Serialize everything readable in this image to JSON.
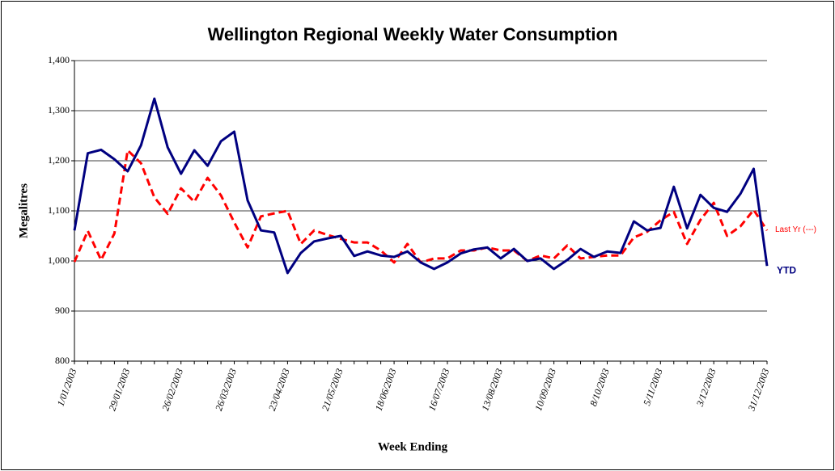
{
  "chart_data": {
    "type": "line",
    "title": "Wellington Regional Weekly Water Consumption",
    "x_label": "Week Ending",
    "y_label": "Megalitres",
    "categories": [
      "1/01/2003",
      null,
      null,
      null,
      "29/01/2003",
      null,
      null,
      null,
      "26/02/2003",
      null,
      null,
      null,
      "26/03/2003",
      null,
      null,
      null,
      "23/04/2003",
      null,
      null,
      null,
      "21/05/2003",
      null,
      null,
      null,
      "18/06/2003",
      null,
      null,
      null,
      "16/07/2003",
      null,
      null,
      null,
      "13/08/2003",
      null,
      null,
      null,
      "10/09/2003",
      null,
      null,
      null,
      "8/10/2003",
      null,
      null,
      null,
      "5/11/2003",
      null,
      null,
      null,
      "3/12/2003",
      null,
      null,
      null,
      "31/12/2003"
    ],
    "series": [
      {
        "name": "YTD",
        "color": "#000080",
        "dashed": false,
        "values": [
          1061,
          1215,
          1222,
          1203,
          1179,
          1231,
          1324,
          1227,
          1174,
          1221,
          1190,
          1239,
          1258,
          1121,
          1061,
          1057,
          976,
          1016,
          1039,
          1045,
          1050,
          1010,
          1019,
          1011,
          1008,
          1019,
          997,
          984,
          997,
          1015,
          1023,
          1027,
          1005,
          1024,
          1000,
          1005,
          984,
          1002,
          1024,
          1008,
          1019,
          1016,
          1079,
          1061,
          1066,
          1148,
          1065,
          1132,
          1106,
          1098,
          1134,
          1184,
          990
        ]
      },
      {
        "name": "Last Yr (---)",
        "color": "#ff0000",
        "dashed": true,
        "values": [
          998,
          1060,
          1002,
          1055,
          1221,
          1195,
          1127,
          1094,
          1145,
          1118,
          1166,
          1131,
          1077,
          1027,
          1089,
          1095,
          1100,
          1034,
          1061,
          1052,
          1044,
          1037,
          1037,
          1021,
          997,
          1034,
          997,
          1005,
          1005,
          1021,
          1021,
          1027,
          1021,
          1021,
          1000,
          1011,
          1005,
          1031,
          1005,
          1008,
          1011,
          1011,
          1047,
          1058,
          1081,
          1098,
          1034,
          1082,
          1116,
          1050,
          1069,
          1102,
          1061
        ]
      }
    ],
    "ylim": [
      800,
      1400
    ],
    "yticks": [
      800,
      900,
      {
        "value": 1000,
        "label": "1,000"
      },
      {
        "value": 1100,
        "label": "1,100"
      },
      {
        "value": 1200,
        "label": "1,200"
      },
      {
        "value": 1300,
        "label": "1,300"
      },
      {
        "value": 1400,
        "label": "1,400"
      }
    ],
    "grid": true
  }
}
